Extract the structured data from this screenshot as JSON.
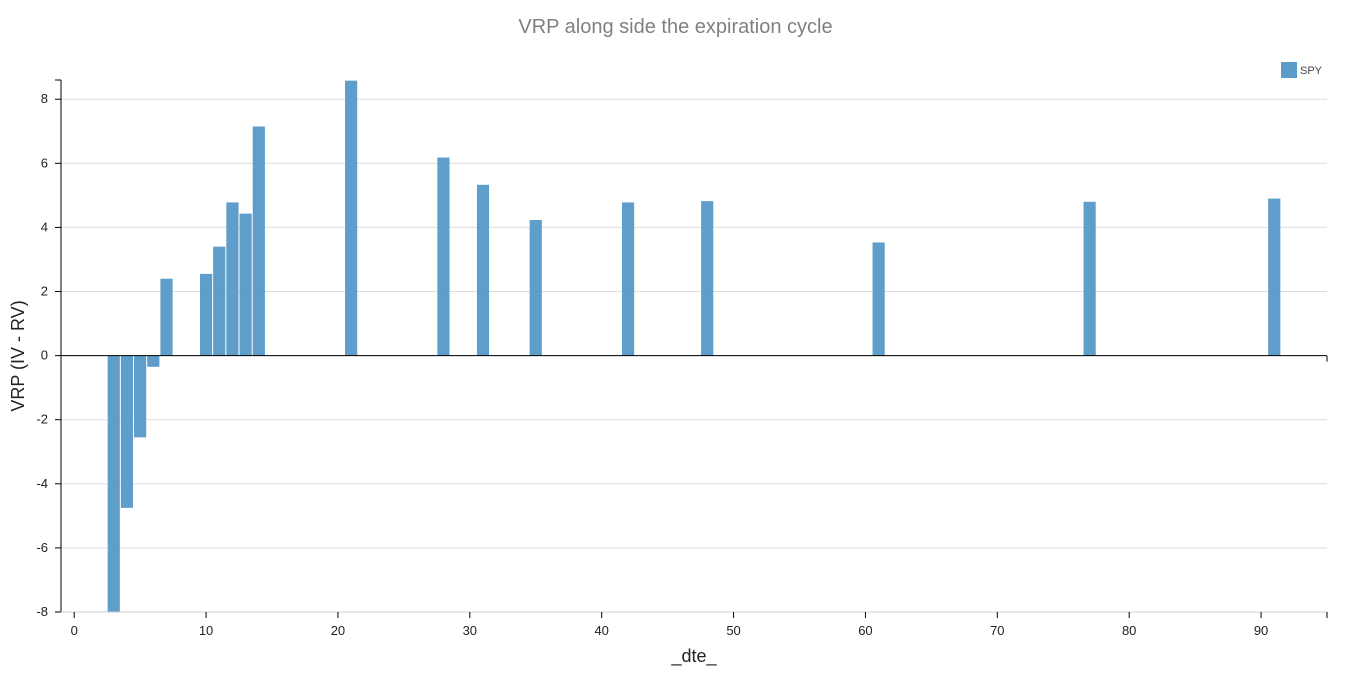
{
  "chart_data": {
    "type": "bar",
    "title": "VRP along side the expiration cycle",
    "xlabel": "_dte_",
    "ylabel": "VRP (IV - RV)",
    "xlim": [
      -1,
      95
    ],
    "ylim": [
      -8,
      8.6
    ],
    "x_ticks": [
      0,
      10,
      20,
      30,
      40,
      50,
      60,
      70,
      80,
      90
    ],
    "y_ticks": [
      -8,
      -6,
      -4,
      -2,
      0,
      2,
      4,
      6,
      8
    ],
    "grid": true,
    "legend_position": "top-right",
    "series": [
      {
        "name": "SPY",
        "color": "#5a9bc8",
        "x": [
          3,
          4,
          5,
          6,
          7,
          10,
          11,
          12,
          13,
          14,
          21,
          28,
          31,
          35,
          42,
          48,
          61,
          77,
          91
        ],
        "values": [
          -8.0,
          -4.75,
          -2.55,
          -0.35,
          2.4,
          2.55,
          3.4,
          4.78,
          4.43,
          7.15,
          8.58,
          6.18,
          5.33,
          4.23,
          4.78,
          4.82,
          3.53,
          4.8,
          4.9
        ]
      }
    ]
  }
}
